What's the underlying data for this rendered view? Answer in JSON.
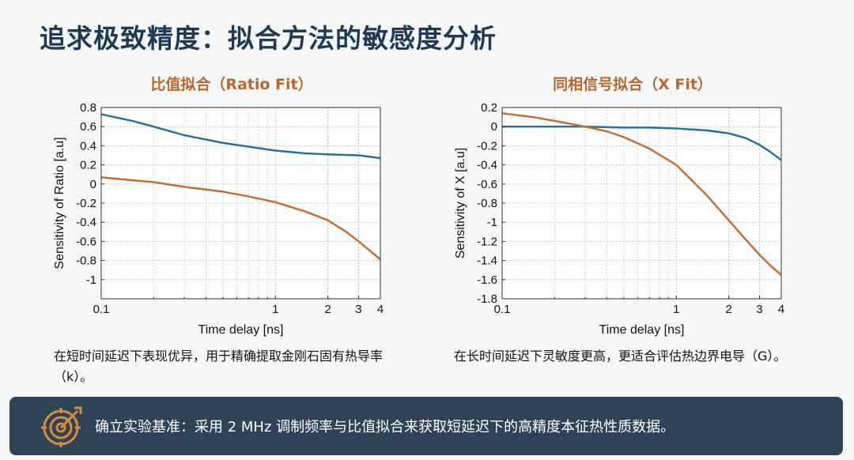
{
  "page": {
    "title": "追求极致精度：拟合方法的敏感度分析"
  },
  "left_caption": "在短时间延迟下表现优异，用于精确提取金刚石固有热导率（k）。",
  "right_caption": "在长时间延迟下灵敏度更高，更适合评估热边界电导（G）。",
  "banner": {
    "icon": "target-icon",
    "text": "确立实验基准：采用 2 MHz 调制频率与比值拟合来获取短延迟下的高精度本征热性质数据。"
  },
  "colors": {
    "title": "#1f3a55",
    "chart_title": "#b8692e",
    "blue_series": "#1f6fa3",
    "orange_series": "#c8692a",
    "banner_bg": "#2f4357",
    "icon": "#d98b3a"
  },
  "chart_data": [
    {
      "type": "line",
      "title": "比值拟合（Ratio Fit）",
      "xlabel": "Time delay [ns]",
      "ylabel": "Sensitivity of Ratio [a.u]",
      "x_scale": "log",
      "xlim": [
        0.1,
        4
      ],
      "ylim": [
        -1.2,
        0.8
      ],
      "x_ticks": [
        0.1,
        1,
        2,
        3,
        4
      ],
      "x_tick_labels": [
        "0.1",
        "1",
        "2",
        "3",
        "4"
      ],
      "y_ticks": [
        0.8,
        0.6,
        0.4,
        0.2,
        0,
        -0.2,
        -0.4,
        -0.6,
        -0.8,
        -1
      ],
      "y_tick_labels": [
        "0.8",
        "0.6",
        "0.4",
        "0.2",
        "0",
        "-0.2",
        "-0.4",
        "-0.6",
        "-0.8",
        "-1"
      ],
      "grid": true,
      "series": [
        {
          "color": "#1f6fa3",
          "x": [
            0.1,
            0.15,
            0.2,
            0.3,
            0.5,
            0.7,
            1,
            1.5,
            2,
            3,
            4
          ],
          "y": [
            0.73,
            0.66,
            0.6,
            0.51,
            0.43,
            0.39,
            0.35,
            0.32,
            0.31,
            0.3,
            0.27
          ]
        },
        {
          "color": "#c8692a",
          "x": [
            0.1,
            0.15,
            0.2,
            0.3,
            0.5,
            0.7,
            1,
            1.5,
            2,
            2.5,
            3,
            3.5,
            4
          ],
          "y": [
            0.07,
            0.04,
            0.02,
            -0.03,
            -0.08,
            -0.13,
            -0.19,
            -0.29,
            -0.38,
            -0.49,
            -0.6,
            -0.7,
            -0.79
          ]
        }
      ]
    },
    {
      "type": "line",
      "title": "同相信号拟合（X Fit）",
      "xlabel": "Time delay [ns]",
      "ylabel": "Sensitivity of X [a.u]",
      "x_scale": "log",
      "xlim": [
        0.1,
        4
      ],
      "ylim": [
        -1.8,
        0.2
      ],
      "x_ticks": [
        0.1,
        1,
        2,
        3,
        4
      ],
      "x_tick_labels": [
        "0.1",
        "1",
        "2",
        "3",
        "4"
      ],
      "y_ticks": [
        0.2,
        0,
        -0.2,
        -0.4,
        -0.6,
        -0.8,
        -1,
        -1.2,
        -1.4,
        -1.6,
        -1.8
      ],
      "y_tick_labels": [
        "0.2",
        "0",
        "-0.2",
        "-0.4",
        "-0.6",
        "-0.8",
        "-1",
        "-1.2",
        "-1.4",
        "-1.6",
        "-1.8"
      ],
      "grid": true,
      "series": [
        {
          "color": "#1f6fa3",
          "x": [
            0.1,
            0.2,
            0.3,
            0.5,
            0.7,
            1,
            1.5,
            2,
            2.5,
            3,
            3.5,
            4
          ],
          "y": [
            0.0,
            0.0,
            0.0,
            -0.01,
            -0.01,
            -0.02,
            -0.04,
            -0.07,
            -0.12,
            -0.19,
            -0.27,
            -0.35
          ]
        },
        {
          "color": "#c8692a",
          "x": [
            0.1,
            0.15,
            0.2,
            0.3,
            0.4,
            0.5,
            0.7,
            1,
            1.5,
            2,
            2.5,
            3,
            3.5,
            4
          ],
          "y": [
            0.14,
            0.1,
            0.06,
            0.0,
            -0.05,
            -0.11,
            -0.23,
            -0.4,
            -0.72,
            -0.98,
            -1.18,
            -1.34,
            -1.46,
            -1.55
          ]
        }
      ]
    }
  ]
}
